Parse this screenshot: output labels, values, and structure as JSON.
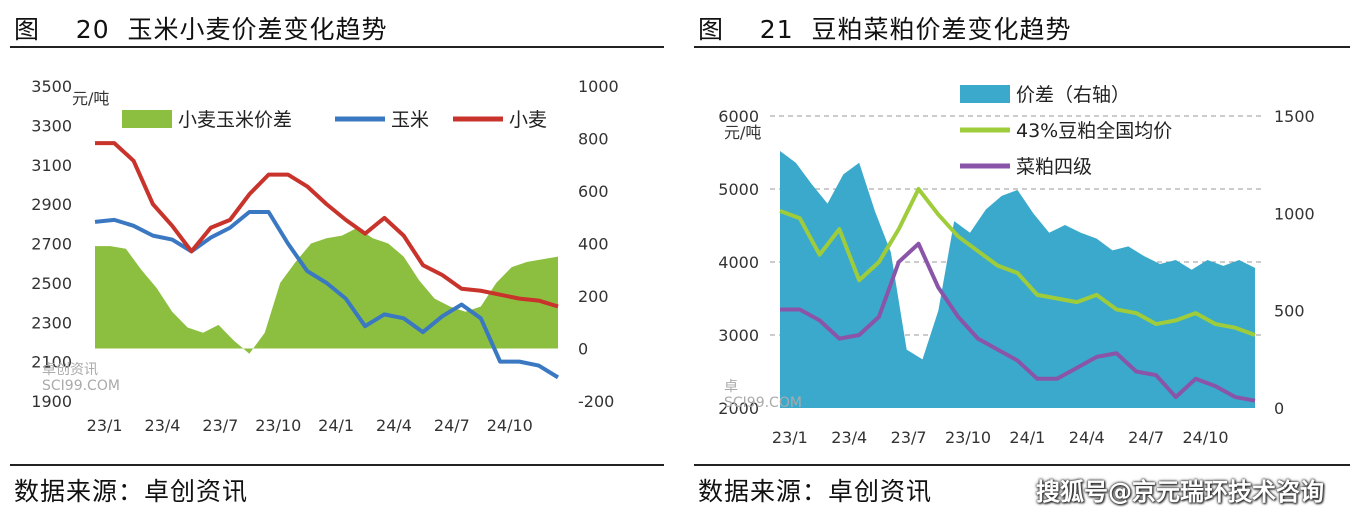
{
  "watermark": "搜狐号@京元瑞环技术咨询",
  "charts": [
    {
      "title": "图    20  玉米小麦价差变化趋势",
      "source": "数据来源：卓创资讯",
      "unit": "元/吨",
      "logo_text": "卓创资讯",
      "logo_sub": "SCI99.COM",
      "chart_data": {
        "type": "line",
        "x_ticks": [
          "23/1",
          "23/4",
          "23/7",
          "23/10",
          "24/1",
          "24/4",
          "24/7",
          "24/10"
        ],
        "x_range": [
          0,
          24
        ],
        "y_left": {
          "min": 1900,
          "max": 3500,
          "ticks": [
            3500,
            3300,
            3100,
            2900,
            2700,
            2500,
            2300,
            2100,
            1900
          ]
        },
        "y_right": {
          "min": -200,
          "max": 1000,
          "ticks": [
            1000,
            800,
            600,
            400,
            200,
            0,
            -200
          ]
        },
        "legend": "top",
        "grid": false,
        "series": [
          {
            "name": "小麦玉米价差",
            "type": "area",
            "axis": "right",
            "color": "#8cbf3f",
            "x": [
              0,
              0.8,
              1.6,
              2.4,
              3.2,
              4,
              4.8,
              5.6,
              6.4,
              7.2,
              8,
              8.8,
              9.6,
              10.4,
              11.2,
              12,
              12.8,
              13.6,
              14.4,
              15.2,
              16,
              16.8,
              17.6,
              18.4,
              19.2,
              20,
              20.8,
              21.6,
              22.4,
              23.2,
              24
            ],
            "y": [
              390,
              390,
              380,
              300,
              230,
              140,
              80,
              60,
              90,
              30,
              -20,
              60,
              250,
              330,
              400,
              420,
              430,
              460,
              420,
              400,
              350,
              260,
              190,
              160,
              140,
              160,
              250,
              310,
              330,
              340,
              350
            ]
          },
          {
            "name": "玉米",
            "type": "line",
            "axis": "left",
            "color": "#3a78c2",
            "x": [
              0,
              1,
              2,
              3,
              4,
              5,
              6,
              7,
              8,
              9,
              10,
              11,
              12,
              13,
              14,
              15,
              16,
              17,
              18,
              19,
              20,
              21,
              22,
              23,
              24
            ],
            "y": [
              2810,
              2820,
              2790,
              2740,
              2720,
              2660,
              2730,
              2780,
              2860,
              2860,
              2700,
              2560,
              2500,
              2420,
              2280,
              2340,
              2320,
              2250,
              2330,
              2390,
              2320,
              2100,
              2100,
              2080,
              2020
            ]
          },
          {
            "name": "小麦",
            "type": "line",
            "axis": "left",
            "color": "#c8332b",
            "x": [
              0,
              1,
              2,
              3,
              4,
              5,
              6,
              7,
              8,
              9,
              10,
              11,
              12,
              13,
              14,
              15,
              16,
              17,
              18,
              19,
              20,
              21,
              22,
              23,
              24
            ],
            "y": [
              3210,
              3210,
              3120,
              2900,
              2790,
              2660,
              2780,
              2820,
              2950,
              3050,
              3050,
              2990,
              2900,
              2820,
              2750,
              2830,
              2740,
              2590,
              2540,
              2470,
              2460,
              2440,
              2420,
              2410,
              2380
            ]
          }
        ]
      }
    },
    {
      "title": "图    21  豆粕菜粕价差变化趋势",
      "source": "数据来源：卓创资讯",
      "unit": "元/吨",
      "logo_text": "卓",
      "logo_sub": "SCI99.COM",
      "chart_data": {
        "type": "line",
        "x_ticks": [
          "23/1",
          "23/4",
          "23/7",
          "23/10",
          "24/1",
          "24/4",
          "24/7",
          "24/10"
        ],
        "x_range": [
          0,
          24
        ],
        "y_left": {
          "min": 2000,
          "max": 6000,
          "ticks": [
            6000,
            5000,
            4000,
            3000,
            2000
          ]
        },
        "y_right": {
          "min": 0,
          "max": 1500,
          "ticks": [
            1500,
            1000,
            500,
            0
          ]
        },
        "legend": "top",
        "grid": true,
        "series": [
          {
            "name": "价差（右轴）",
            "type": "area",
            "axis": "right",
            "color": "#3aa9cc",
            "x": [
              0,
              0.8,
              1.6,
              2.4,
              3.2,
              4,
              4.8,
              5.6,
              6.4,
              7.2,
              8,
              8.8,
              9.6,
              10.4,
              11.2,
              12,
              12.8,
              13.6,
              14.4,
              15.2,
              16,
              16.8,
              17.6,
              18.4,
              19.2,
              20,
              20.8,
              21.6,
              22.4,
              23.2,
              24
            ],
            "y": [
              1320,
              1260,
              1150,
              1050,
              1200,
              1260,
              1010,
              800,
              300,
              250,
              500,
              960,
              900,
              1020,
              1090,
              1120,
              1000,
              900,
              940,
              900,
              870,
              810,
              830,
              780,
              740,
              760,
              710,
              760,
              730,
              760,
              720
            ]
          },
          {
            "name": "43%豆粕全国均价",
            "type": "line",
            "axis": "left",
            "color": "#9fcc3b",
            "x": [
              0,
              1,
              2,
              3,
              4,
              5,
              6,
              7,
              8,
              9,
              10,
              11,
              12,
              13,
              14,
              15,
              16,
              17,
              18,
              19,
              20,
              21,
              22,
              23,
              24
            ],
            "y": [
              4700,
              4600,
              4100,
              4450,
              3750,
              4000,
              4450,
              5000,
              4650,
              4350,
              4150,
              3950,
              3850,
              3550,
              3500,
              3450,
              3550,
              3350,
              3300,
              3150,
              3200,
              3300,
              3150,
              3100,
              3000
            ]
          },
          {
            "name": "菜粕四级",
            "type": "line",
            "axis": "left",
            "color": "#8a55a8",
            "x": [
              0,
              1,
              2,
              3,
              4,
              5,
              6,
              7,
              8,
              9,
              10,
              11,
              12,
              13,
              14,
              15,
              16,
              17,
              18,
              19,
              20,
              21,
              22,
              23,
              24
            ],
            "y": [
              3350,
              3350,
              3200,
              2950,
              3000,
              3250,
              4000,
              4250,
              3650,
              3250,
              2950,
              2800,
              2650,
              2400,
              2400,
              2550,
              2700,
              2750,
              2500,
              2450,
              2150,
              2400,
              2300,
              2150,
              2100
            ]
          }
        ]
      }
    }
  ]
}
